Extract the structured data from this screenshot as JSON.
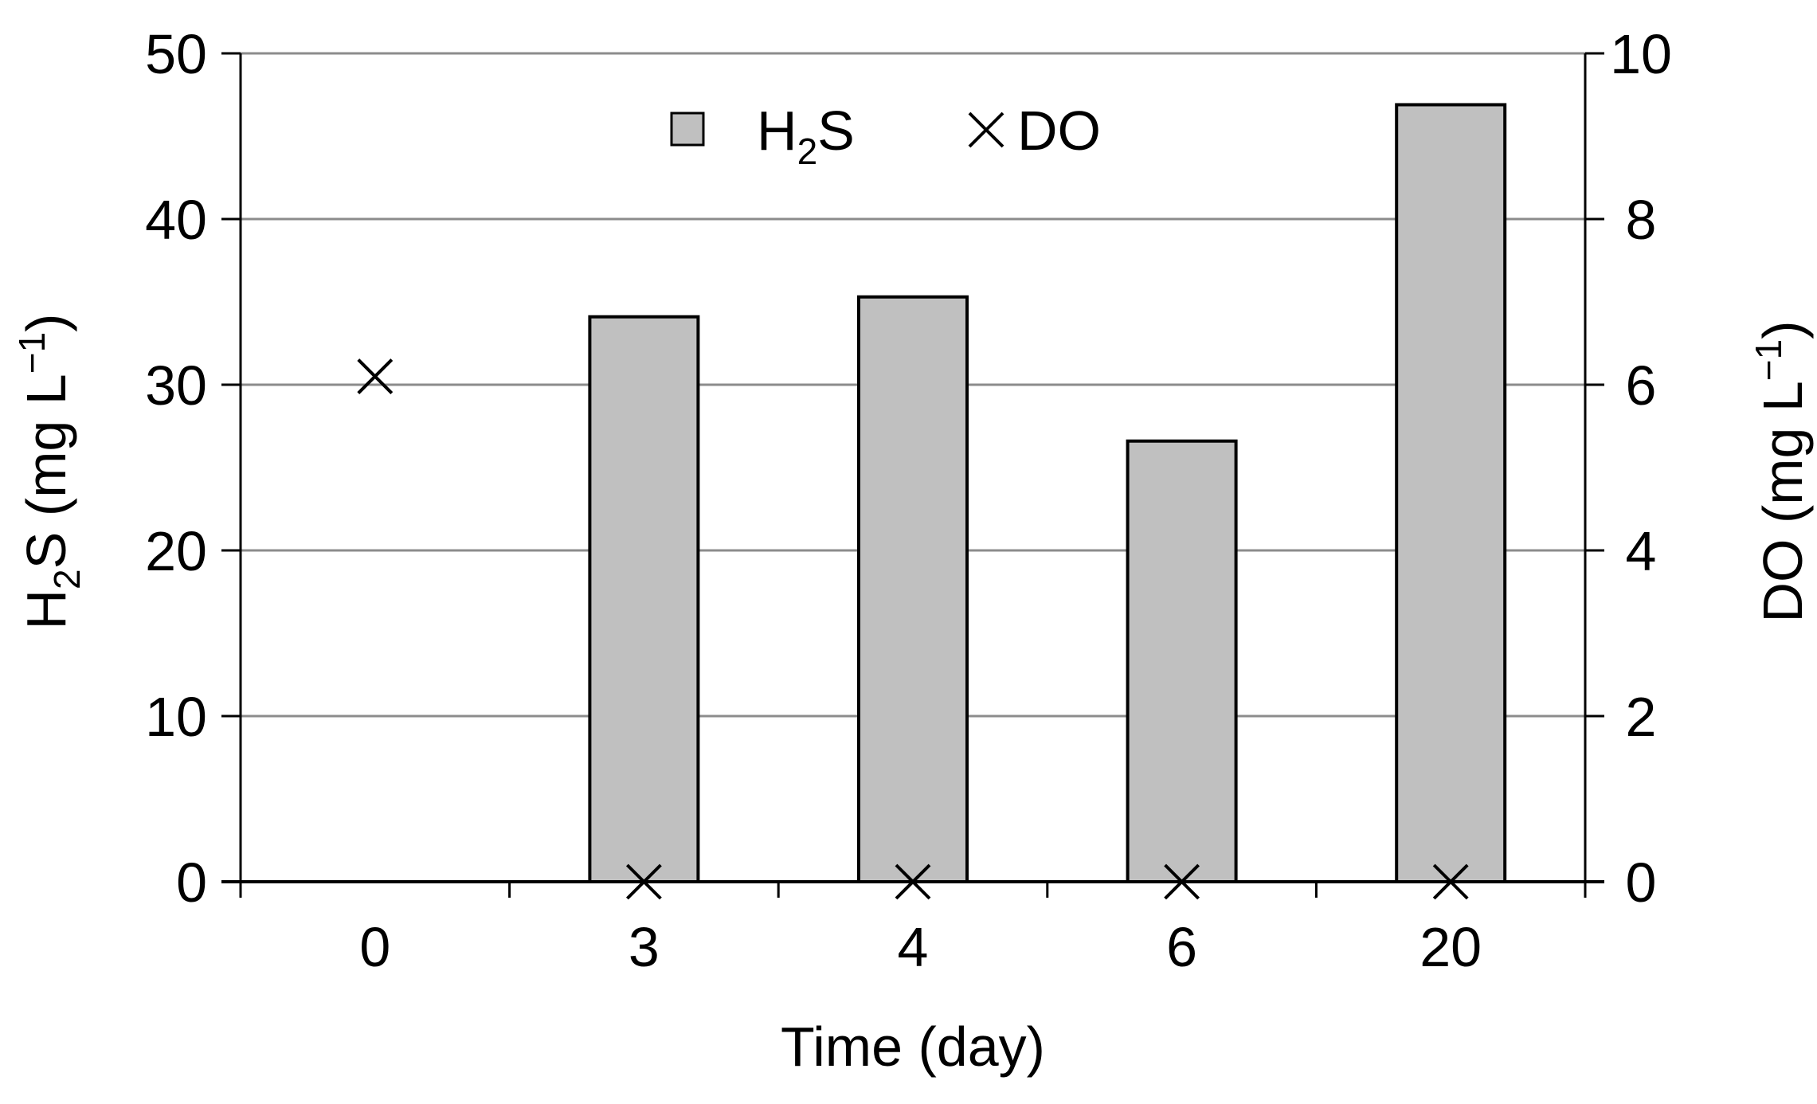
{
  "chart_data": {
    "type": "bar",
    "xlabel": "Time (day)",
    "categories": [
      "0",
      "3",
      "4",
      "6",
      "20"
    ],
    "series": [
      {
        "name": "H₂S",
        "axis": "left",
        "marker": "bar",
        "values": [
          null,
          34.1,
          35.3,
          26.6,
          46.9
        ]
      },
      {
        "name": "DO",
        "axis": "right",
        "marker": "x",
        "values": [
          6.1,
          0,
          0,
          0,
          0
        ]
      }
    ],
    "y_left": {
      "label_main": "H",
      "label_sub": "2",
      "label_rest": "S (mg L",
      "label_sup": "−1",
      "label_close": ")",
      "ylim": [
        0,
        50
      ],
      "ticks": [
        "0",
        "10",
        "20",
        "30",
        "40",
        "50"
      ]
    },
    "y_right": {
      "label_main": "DO (mg L",
      "label_sup": "−1",
      "label_close": ")",
      "ylim": [
        0,
        10
      ],
      "ticks": [
        "0",
        "2",
        "4",
        "6",
        "8",
        "10"
      ]
    },
    "legend": {
      "position": "top-center",
      "h2s_main": "H",
      "h2s_sub": "2",
      "h2s_rest": "S",
      "do_label": "DO"
    },
    "grid": true,
    "colors": {
      "bar_fill": "#c0c0c0",
      "bar_stroke": "#000000",
      "grid": "#8c8c8c",
      "axis": "#000000"
    }
  }
}
